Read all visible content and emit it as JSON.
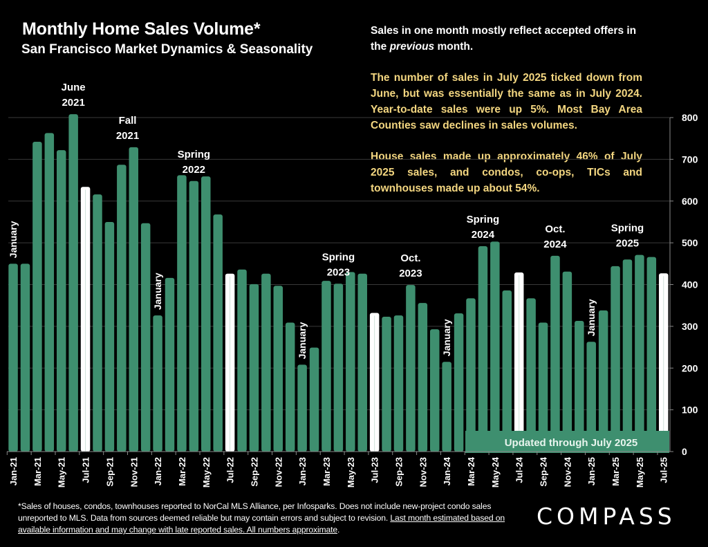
{
  "header": {
    "title": "Monthly Home Sales Volume*",
    "subtitle": "San Francisco Market Dynamics & Seasonality"
  },
  "notes": {
    "note1_pre": "Sales in one month mostly reflect accepted offers in the ",
    "note1_em": "previous",
    "note1_post": " month.",
    "note2": "The number of sales in July 2025 ticked down from June, but was essentially the same as in July 2024. Year-to-date sales were up 5%. Most Bay Area Counties saw declines in sales volumes.",
    "note3": "House sales made up approximately 46% of July 2025 sales, and condos, co-ops, TICs and townhouses made up about 54%."
  },
  "badge": "Updated through July 2025",
  "footnote": {
    "text": "*Sales of houses, condos, townhouses reported to NorCal MLS Alliance, per Infosparks. Does not include new-project condo sales unreported to MLS. Data from sources deemed reliable but may contain errors and subject to revision. ",
    "underlined": "Last month estimated based on available information and may change with late reported sales. All numbers approximate",
    "end": "."
  },
  "logo": "COMPASS",
  "colors": {
    "bar": "#3e8f6f",
    "highlight_bar": "#ffffff",
    "background": "#000000",
    "note_yellow": "#f3d680",
    "grid": "#3a3a3a"
  },
  "chart_data": {
    "type": "bar",
    "title": "Monthly Home Sales Volume*",
    "subtitle": "San Francisco Market Dynamics & Seasonality",
    "xlabel": "",
    "ylabel": "",
    "ylim": [
      0,
      800
    ],
    "yticks": [
      0,
      100,
      200,
      300,
      400,
      500,
      600,
      700,
      800
    ],
    "y_axis_position": "right",
    "grid": true,
    "categories": [
      "Jan-21",
      "Feb-21",
      "Mar-21",
      "Apr-21",
      "May-21",
      "Jun-21",
      "Jul-21",
      "Aug-21",
      "Sep-21",
      "Oct-21",
      "Nov-21",
      "Dec-21",
      "Jan-22",
      "Feb-22",
      "Mar-22",
      "Apr-22",
      "May-22",
      "Jun-22",
      "Jul-22",
      "Aug-22",
      "Sep-22",
      "Oct-22",
      "Nov-22",
      "Dec-22",
      "Jan-23",
      "Feb-23",
      "Mar-23",
      "Apr-23",
      "May-23",
      "Jun-23",
      "Jul-23",
      "Aug-23",
      "Sep-23",
      "Oct-23",
      "Nov-23",
      "Dec-23",
      "Jan-24",
      "Feb-24",
      "Mar-24",
      "Apr-24",
      "May-24",
      "Jun-24",
      "Jul-24",
      "Aug-24",
      "Sep-24",
      "Oct-24",
      "Nov-24",
      "Dec-24",
      "Jan-25",
      "Feb-25",
      "Mar-25",
      "Apr-25",
      "May-25",
      "Jun-25",
      "Jul-25"
    ],
    "values": [
      450,
      450,
      742,
      763,
      722,
      808,
      634,
      616,
      550,
      687,
      729,
      547,
      326,
      416,
      662,
      648,
      659,
      568,
      426,
      436,
      401,
      426,
      397,
      309,
      208,
      249,
      409,
      402,
      430,
      426,
      332,
      323,
      326,
      399,
      356,
      293,
      215,
      331,
      367,
      492,
      503,
      386,
      429,
      367,
      309,
      469,
      431,
      313,
      263,
      338,
      444,
      460,
      471,
      466,
      427
    ],
    "highlighted": [
      "Jul-21",
      "Jul-22",
      "Jul-23",
      "Jul-24",
      "Jul-25"
    ],
    "xtick_labels": [
      "Jan-21",
      "Mar-21",
      "May-21",
      "Jul-21",
      "Sep-21",
      "Nov-21",
      "Jan-22",
      "Mar-22",
      "May-22",
      "Jul-22",
      "Sep-22",
      "Nov-22",
      "Jan-23",
      "Mar-23",
      "May-23",
      "Jul-23",
      "Sep-23",
      "Nov-23",
      "Jan-24",
      "Mar-24",
      "May-24",
      "Jul-24",
      "Sep-24",
      "Nov-24",
      "Jan-25",
      "Mar-25",
      "May-25",
      "Jul-25"
    ],
    "annotations": [
      {
        "text": [
          "January"
        ],
        "anchor": "Jan-21",
        "vertical": true
      },
      {
        "text": [
          "June",
          "2021"
        ],
        "anchor": "Jun-21",
        "vertical": false
      },
      {
        "text": [
          "Fall",
          "2021"
        ],
        "anchor": "Oct-21",
        "anchor2": "Nov-21",
        "vertical": false
      },
      {
        "text": [
          "Spring",
          "2022"
        ],
        "anchor": "Apr-22",
        "vertical": false
      },
      {
        "text": [
          "January"
        ],
        "anchor": "Jan-22",
        "vertical": true
      },
      {
        "text": [
          "January"
        ],
        "anchor": "Jan-23",
        "vertical": true
      },
      {
        "text": [
          "Spring",
          "2023"
        ],
        "anchor": "Apr-23",
        "vertical": false
      },
      {
        "text": [
          "Oct.",
          "2023"
        ],
        "anchor": "Oct-23",
        "vertical": false
      },
      {
        "text": [
          "January"
        ],
        "anchor": "Jan-24",
        "vertical": true
      },
      {
        "text": [
          "Spring",
          "2024"
        ],
        "anchor": "Apr-24",
        "vertical": false
      },
      {
        "text": [
          "Oct.",
          "2024"
        ],
        "anchor": "Oct-24",
        "vertical": false
      },
      {
        "text": [
          "January"
        ],
        "anchor": "Jan-25",
        "vertical": true
      },
      {
        "text": [
          "Spring",
          "2025"
        ],
        "anchor": "Mar-25",
        "anchor2": "May-25",
        "vertical": false
      }
    ]
  }
}
